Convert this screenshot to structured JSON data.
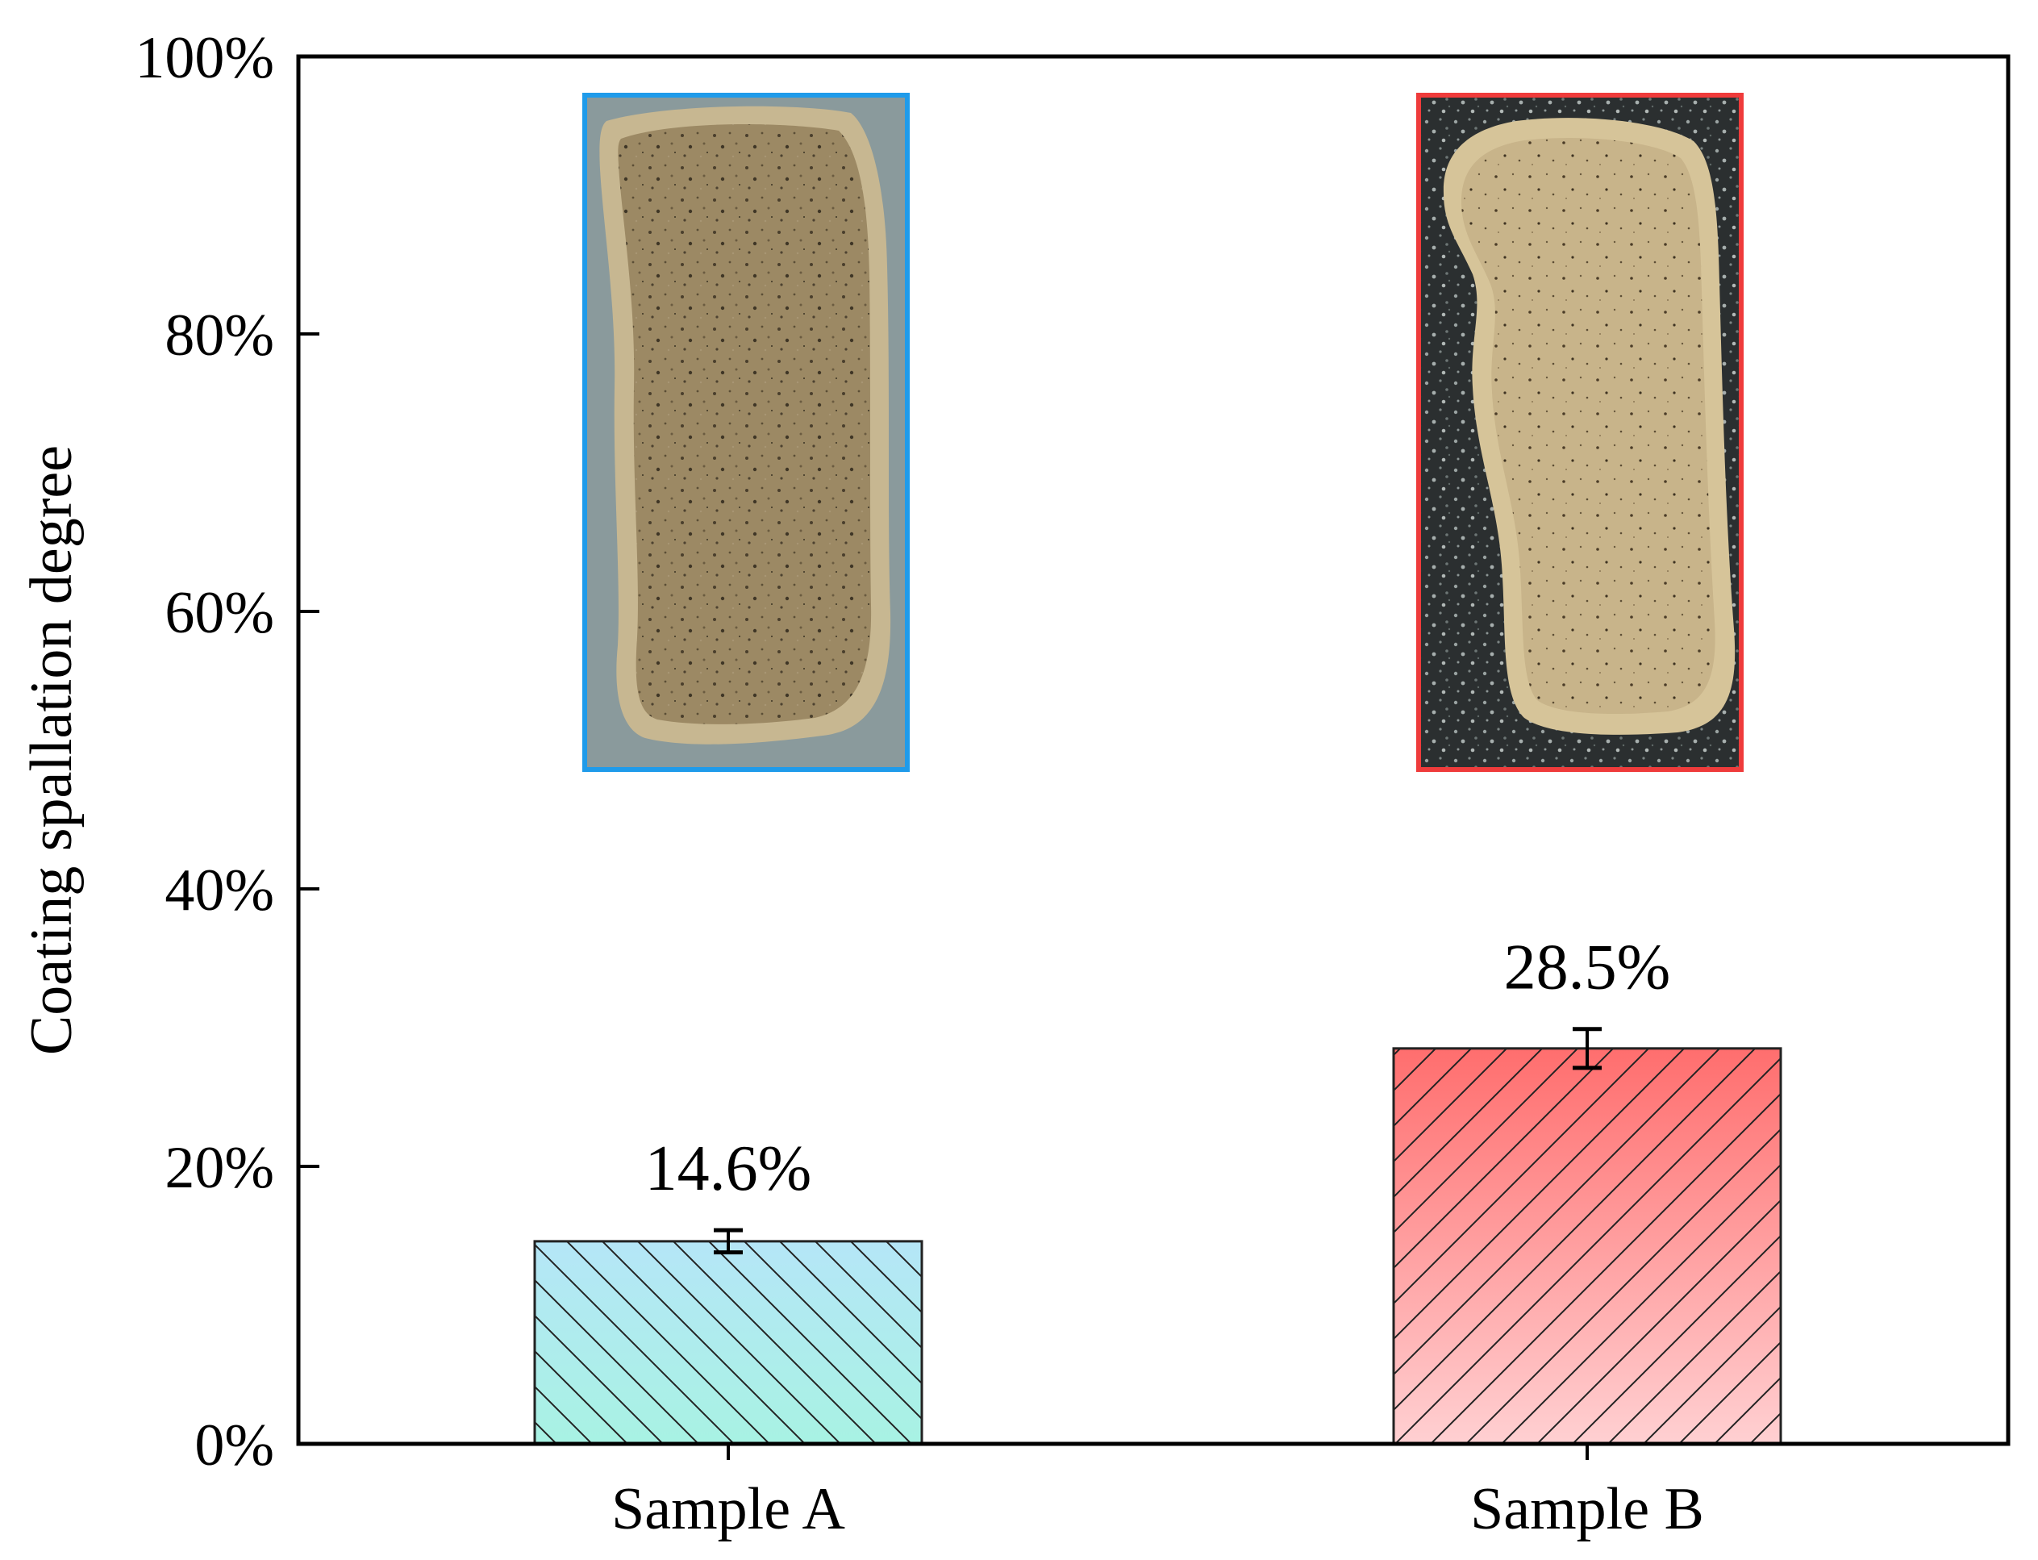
{
  "chart_data": {
    "type": "bar",
    "title": "",
    "xlabel": "",
    "ylabel": "Coating spallation degree",
    "ylim": [
      0,
      100
    ],
    "yticks": [
      0,
      20,
      40,
      60,
      80,
      100
    ],
    "ytick_suffix": "%",
    "grid": false,
    "legend": "none",
    "categories": [
      "Sample A",
      "Sample B"
    ],
    "values": [
      14.6,
      28.5
    ],
    "error": [
      0.8,
      1.4
    ],
    "data_labels": [
      "14.6%",
      "28.5%"
    ],
    "bar_gradients": [
      {
        "top": "#b5e6f7",
        "bottom": "#a8f2e3",
        "hatch": "right-down"
      },
      {
        "top": "#ff6e6e",
        "bottom": "#ffd0d2",
        "hatch": "left-down"
      }
    ],
    "inset_photos": [
      {
        "sample": "Sample A",
        "frame_color": "#1f9bea"
      },
      {
        "sample": "Sample B",
        "frame_color": "#ef3b3b"
      }
    ]
  }
}
